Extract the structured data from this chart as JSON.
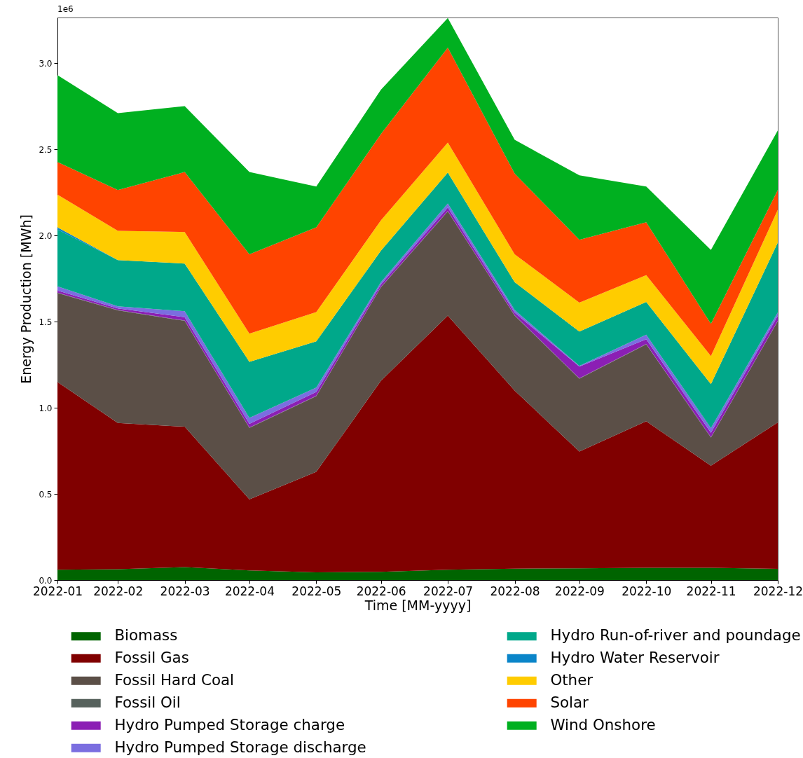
{
  "chart_data": {
    "type": "area",
    "stacked": true,
    "xlabel": "Time [MM-yyyy]",
    "ylabel": "Energy Production [MWh]",
    "x": [
      "2022-01-31",
      "2022-02-28",
      "2022-03-31",
      "2022-04-30",
      "2022-05-31",
      "2022-06-30",
      "2022-07-31",
      "2022-08-31",
      "2022-09-30",
      "2022-10-31",
      "2022-11-30",
      "2022-12-31"
    ],
    "xlim": [
      "2022-01-31",
      "2022-12-31"
    ],
    "xticks": [
      {
        "value": "2022-01-31",
        "label": "2022-01"
      },
      {
        "value": "2022-02-28",
        "label": "2022-02"
      },
      {
        "value": "2022-03-31",
        "label": "2022-03"
      },
      {
        "value": "2022-04-30",
        "label": "2022-04"
      },
      {
        "value": "2022-05-31",
        "label": "2022-05"
      },
      {
        "value": "2022-06-30",
        "label": "2022-06"
      },
      {
        "value": "2022-07-31",
        "label": "2022-07"
      },
      {
        "value": "2022-08-31",
        "label": "2022-08"
      },
      {
        "value": "2022-09-30",
        "label": "2022-09"
      },
      {
        "value": "2022-10-31",
        "label": "2022-10"
      },
      {
        "value": "2022-11-30",
        "label": "2022-11"
      },
      {
        "value": "2022-12-31",
        "label": "2022-12"
      }
    ],
    "ylim": [
      0,
      3.265
    ],
    "yticks": [
      {
        "value": 0,
        "label": "0.0"
      },
      0.5,
      {
        "value": 1,
        "label": "1.0"
      },
      1.5,
      {
        "value": 2,
        "label": "2.0"
      },
      2.5,
      {
        "value": 3,
        "label": "3.0"
      }
    ],
    "annotations": [
      "1e6"
    ],
    "legend": "bottom",
    "series": [
      {
        "name": "Biomass",
        "color": "#006400",
        "values": [
          0.06,
          0.063,
          0.075,
          0.056,
          0.045,
          0.048,
          0.06,
          0.066,
          0.068,
          0.071,
          0.071,
          0.065
        ]
      },
      {
        "name": "Fossil Gas",
        "color": "#800000",
        "values": [
          1.09,
          0.849,
          0.815,
          0.413,
          0.583,
          1.109,
          1.475,
          1.034,
          0.678,
          0.851,
          0.593,
          0.85
        ]
      },
      {
        "name": "Fossil Hard Coal",
        "color": "#5b4f47",
        "values": [
          0.516,
          0.653,
          0.614,
          0.414,
          0.439,
          0.543,
          0.605,
          0.435,
          0.423,
          0.446,
          0.163,
          0.587
        ]
      },
      {
        "name": "Fossil Oil",
        "color": "#57625d",
        "values": [
          0.002,
          0.002,
          0.002,
          0.002,
          0.002,
          0.002,
          0.002,
          0.002,
          0.002,
          0.002,
          0.002,
          0.002
        ]
      },
      {
        "name": "Hydro Pumped Storage charge",
        "color": "#8b1fb4",
        "values": [
          0.012,
          0.01,
          0.02,
          0.022,
          0.023,
          0.014,
          0.02,
          0.015,
          0.068,
          0.028,
          0.026,
          0.03
        ]
      },
      {
        "name": "Hydro Pumped Storage discharge",
        "color": "#7b6ee0",
        "values": [
          0.025,
          0.012,
          0.034,
          0.034,
          0.025,
          0.013,
          0.023,
          0.015,
          0.004,
          0.026,
          0.027,
          0.019
        ]
      },
      {
        "name": "Hydro Run-of-river and poundage",
        "color": "#00a88a",
        "values": [
          0.33,
          0.268,
          0.277,
          0.326,
          0.268,
          0.183,
          0.18,
          0.162,
          0.199,
          0.19,
          0.255,
          0.406
        ]
      },
      {
        "name": "Hydro Water Reservoir",
        "color": "#0a85c9",
        "values": [
          0.012,
          0,
          0,
          0,
          0,
          0,
          0,
          0,
          0,
          0,
          0,
          0
        ]
      },
      {
        "name": "Other",
        "color": "#ffcc00",
        "values": [
          0.19,
          0.17,
          0.183,
          0.163,
          0.17,
          0.176,
          0.174,
          0.162,
          0.168,
          0.156,
          0.163,
          0.19
        ]
      },
      {
        "name": "Solar",
        "color": "#ff4400",
        "values": [
          0.189,
          0.237,
          0.348,
          0.461,
          0.492,
          0.501,
          0.551,
          0.468,
          0.365,
          0.307,
          0.187,
          0.115
        ]
      },
      {
        "name": "Wind Onshore",
        "color": "#00b020",
        "values": [
          0.505,
          0.446,
          0.383,
          0.477,
          0.237,
          0.257,
          0.172,
          0.196,
          0.374,
          0.207,
          0.429,
          0.345
        ]
      }
    ]
  }
}
